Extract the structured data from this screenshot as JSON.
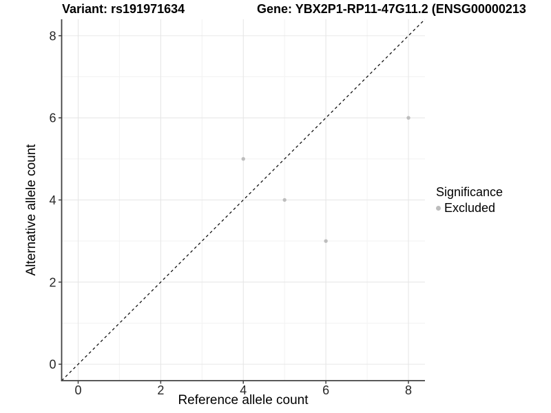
{
  "header": {
    "title_variant": "Variant: rs191971634",
    "title_gene": "Gene: YBX2P1-RP11-47G11.2 (ENSG00000213"
  },
  "chart_data": {
    "type": "scatter",
    "title": "Variant: rs191971634 / Gene: YBX2P1-RP11-47G11.2 (ENSG00000213...)",
    "xlabel": "Reference allele count",
    "ylabel": "Alternative allele count",
    "xlim": [
      -0.4,
      8.4
    ],
    "ylim": [
      -0.4,
      8.4
    ],
    "x_ticks": [
      0,
      2,
      4,
      6,
      8
    ],
    "y_ticks": [
      0,
      2,
      4,
      6,
      8
    ],
    "x_minor_ticks": [
      1,
      3,
      5,
      7
    ],
    "y_minor_ticks": [
      1,
      3,
      5,
      7
    ],
    "grid": true,
    "legend_position": "right",
    "series": [
      {
        "name": "Excluded",
        "color": "#bdbdbd",
        "points": [
          [
            4,
            5
          ],
          [
            5,
            4
          ],
          [
            6,
            3
          ],
          [
            8,
            6
          ]
        ]
      }
    ],
    "reference_line": {
      "type": "identity y=x",
      "style": "dashed",
      "color": "#000000"
    }
  },
  "legend": {
    "title": "Significance",
    "items": [
      {
        "label": "Excluded",
        "color": "#bdbdbd"
      }
    ]
  },
  "colors": {
    "background": "#ffffff",
    "axis_line": "#404040",
    "tick_label": "#262626",
    "major_grid": "#e6e6e6",
    "minor_grid": "#f2f2f2",
    "point": "#bdbdbd",
    "dashed_line": "#111111"
  }
}
